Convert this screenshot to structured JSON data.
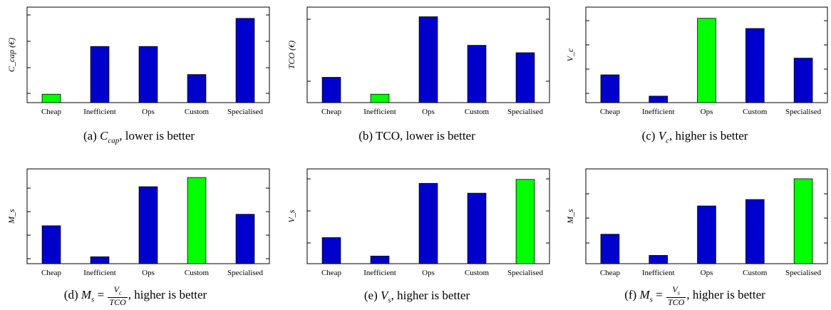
{
  "colors": {
    "bar": "#0000cc",
    "highlight": "#00ff00",
    "axis": "#000000"
  },
  "chart_data": [
    {
      "type": "bar",
      "categories": [
        "Cheap",
        "Inefficient",
        "Ops",
        "Custom",
        "Specialised"
      ],
      "values": [
        0.3,
        2.0,
        2.0,
        1.0,
        3.0
      ],
      "highlight": [
        true,
        false,
        false,
        false,
        false
      ],
      "ylabel": "C_cap (€)",
      "caption_label": "(a)",
      "caption_text": ", lower is better",
      "caption_math": "C_cap",
      "ylim": [
        0,
        3.3
      ],
      "grid": false
    },
    {
      "type": "bar",
      "categories": [
        "Cheap",
        "Inefficient",
        "Ops",
        "Custom",
        "Specialised"
      ],
      "values": [
        0.75,
        0.25,
        2.55,
        1.7,
        1.48
      ],
      "highlight": [
        false,
        true,
        false,
        false,
        false
      ],
      "ylabel": "TCO (€)",
      "caption_label": "(b)",
      "caption_text": "TCO, lower is better",
      "caption_math": "",
      "ylim": [
        0,
        2.75
      ],
      "grid": false
    },
    {
      "type": "bar",
      "categories": [
        "Cheap",
        "Inefficient",
        "Ops",
        "Custom",
        "Specialised"
      ],
      "values": [
        1.5,
        0.35,
        4.55,
        4.0,
        2.4
      ],
      "highlight": [
        false,
        false,
        true,
        false,
        false
      ],
      "ylabel": "V_c",
      "caption_label": "(c)",
      "caption_text": ", higher is better",
      "caption_math": "V_c",
      "ylim": [
        0,
        5.0
      ],
      "grid": false
    },
    {
      "type": "bar",
      "categories": [
        "Cheap",
        "Inefficient",
        "Ops",
        "Custom",
        "Specialised"
      ],
      "values": [
        1.65,
        0.3,
        3.35,
        3.75,
        2.15
      ],
      "highlight": [
        false,
        false,
        false,
        true,
        false
      ],
      "ylabel": "M_s",
      "caption_label": "(d)",
      "caption_text": ", higher is better",
      "caption_math": "M_s = V_c / TCO",
      "ylim": [
        0,
        4.0
      ],
      "grid": false
    },
    {
      "type": "bar",
      "categories": [
        "Cheap",
        "Inefficient",
        "Ops",
        "Custom",
        "Specialised"
      ],
      "values": [
        0.85,
        0.25,
        2.62,
        2.3,
        2.75
      ],
      "highlight": [
        false,
        false,
        false,
        false,
        true
      ],
      "ylabel": "V_s",
      "caption_label": "(e)",
      "caption_text": ", higher is better",
      "caption_math": "V_s",
      "ylim": [
        0,
        3.0
      ],
      "grid": false
    },
    {
      "type": "bar",
      "categories": [
        "Cheap",
        "Inefficient",
        "Ops",
        "Custom",
        "Specialised"
      ],
      "values": [
        1.25,
        0.35,
        2.45,
        2.72,
        3.6
      ],
      "highlight": [
        false,
        false,
        false,
        false,
        true
      ],
      "ylabel": "M_s",
      "caption_label": "(f)",
      "caption_text": ", higher is better",
      "caption_math": "M_s = V_s / TCO",
      "ylim": [
        0,
        3.9
      ],
      "grid": false
    }
  ]
}
